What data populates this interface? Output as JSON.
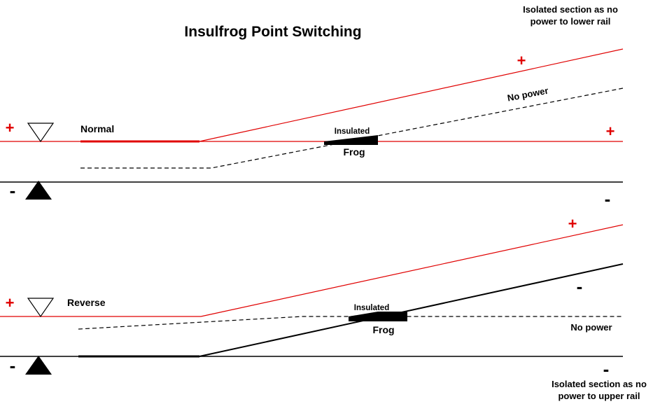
{
  "title": "Insulfrog Point Switching",
  "colors": {
    "positive": "#e00000",
    "negative": "#000000",
    "background": "#ffffff"
  },
  "normal": {
    "label": "Normal",
    "insulated_label": "Insulated",
    "frog_label": "Frog",
    "no_power_label": "No power",
    "isolated_note_line1": "Isolated section as no",
    "isolated_note_line2": "power to lower rail",
    "plus_sign": "+",
    "minus_sign": "-"
  },
  "reverse": {
    "label": "Reverse",
    "insulated_label": "Insulated",
    "frog_label": "Frog",
    "no_power_label": "No power",
    "isolated_note_line1": "Isolated section as no",
    "isolated_note_line2": "power to upper rail",
    "plus_sign": "+",
    "minus_sign": "-"
  }
}
